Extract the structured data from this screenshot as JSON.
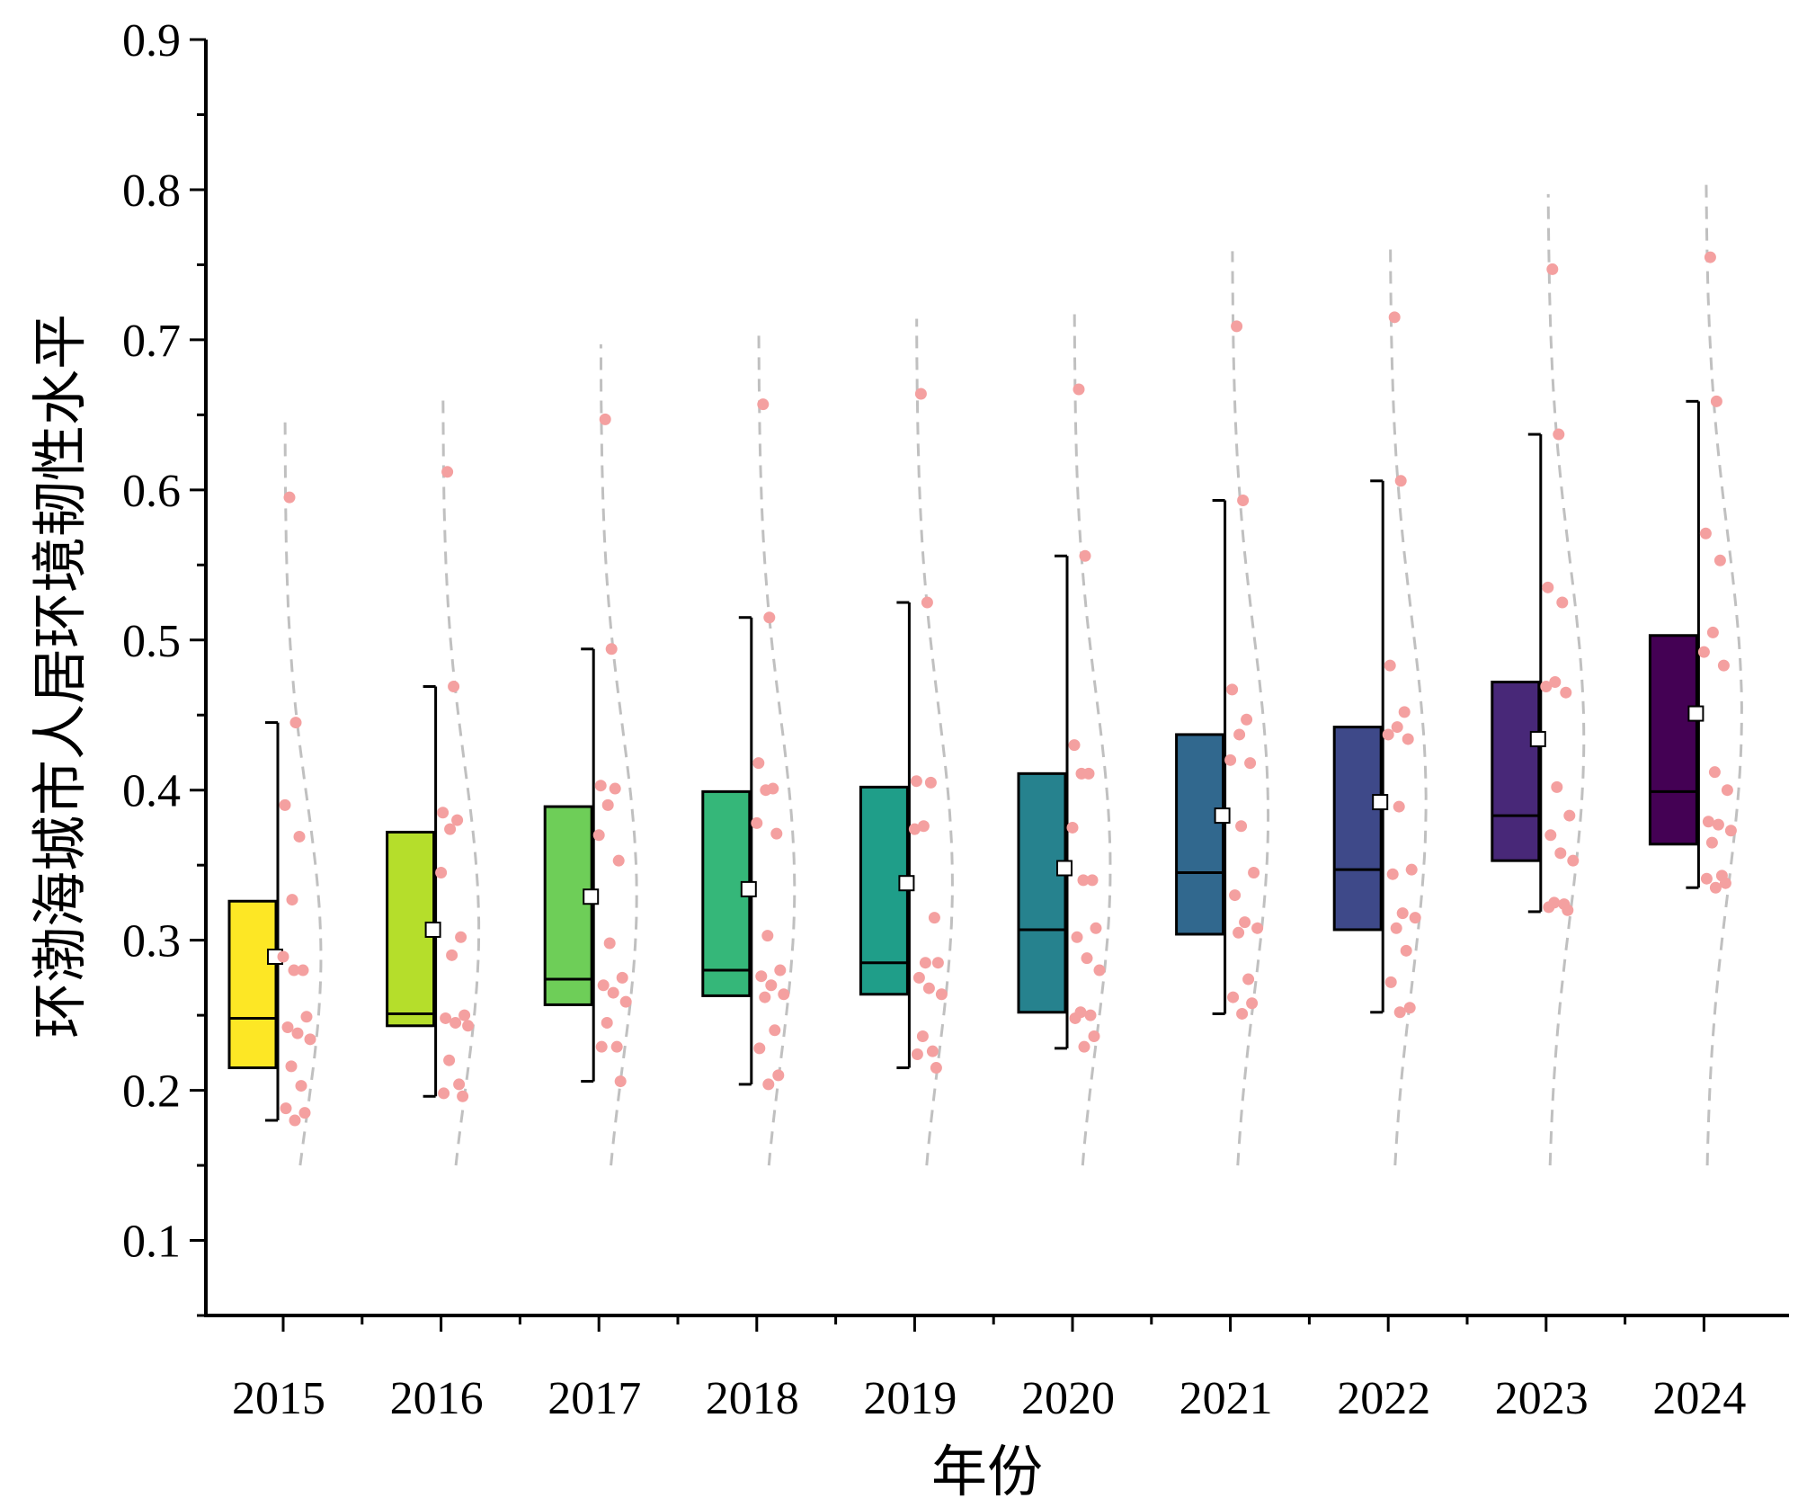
{
  "chart_data": {
    "type": "box",
    "title": "",
    "xlabel": "年份",
    "ylabel": "环渤海城市人居环境韧性水平",
    "ylim": [
      0.05,
      0.9
    ],
    "yticks": [
      "0.1",
      "0.2",
      "0.3",
      "0.4",
      "0.5",
      "0.6",
      "0.7",
      "0.8",
      "0.9"
    ],
    "categories": [
      "2015",
      "2016",
      "2017",
      "2018",
      "2019",
      "2020",
      "2021",
      "2022",
      "2023",
      "2024"
    ],
    "colors": [
      "#fde725",
      "#b5de2b",
      "#6ece58",
      "#35b779",
      "#1f9e89",
      "#26828e",
      "#31688e",
      "#3e4989",
      "#482878",
      "#440154"
    ],
    "point_color": "#f4a0a0",
    "curve_color": "#c0c0c0",
    "series": [
      {
        "name": "2015",
        "q1": 0.215,
        "median": 0.248,
        "q3": 0.326,
        "whisker_low": 0.18,
        "whisker_high": 0.445,
        "mean": 0.289,
        "points": [
          0.595,
          0.445,
          0.39,
          0.369,
          0.327,
          0.289,
          0.28,
          0.28,
          0.249,
          0.242,
          0.238,
          0.234,
          0.216,
          0.203,
          0.188,
          0.185,
          0.18
        ]
      },
      {
        "name": "2016",
        "q1": 0.243,
        "median": 0.251,
        "q3": 0.372,
        "whisker_low": 0.196,
        "whisker_high": 0.469,
        "mean": 0.307,
        "points": [
          0.612,
          0.469,
          0.385,
          0.38,
          0.374,
          0.345,
          0.302,
          0.29,
          0.25,
          0.248,
          0.245,
          0.243,
          0.22,
          0.204,
          0.198,
          0.196
        ]
      },
      {
        "name": "2017",
        "q1": 0.257,
        "median": 0.274,
        "q3": 0.389,
        "whisker_low": 0.206,
        "whisker_high": 0.494,
        "mean": 0.329,
        "points": [
          0.647,
          0.494,
          0.403,
          0.401,
          0.39,
          0.37,
          0.353,
          0.298,
          0.275,
          0.27,
          0.265,
          0.259,
          0.245,
          0.229,
          0.229,
          0.206
        ]
      },
      {
        "name": "2018",
        "q1": 0.263,
        "median": 0.28,
        "q3": 0.399,
        "whisker_low": 0.204,
        "whisker_high": 0.515,
        "mean": 0.334,
        "points": [
          0.657,
          0.515,
          0.418,
          0.401,
          0.4,
          0.378,
          0.371,
          0.303,
          0.28,
          0.276,
          0.27,
          0.264,
          0.262,
          0.24,
          0.228,
          0.21,
          0.204
        ]
      },
      {
        "name": "2019",
        "q1": 0.264,
        "median": 0.285,
        "q3": 0.402,
        "whisker_low": 0.215,
        "whisker_high": 0.525,
        "mean": 0.338,
        "points": [
          0.664,
          0.525,
          0.406,
          0.405,
          0.376,
          0.374,
          0.315,
          0.285,
          0.285,
          0.275,
          0.268,
          0.264,
          0.236,
          0.226,
          0.224,
          0.215
        ]
      },
      {
        "name": "2020",
        "q1": 0.252,
        "median": 0.307,
        "q3": 0.411,
        "whisker_low": 0.228,
        "whisker_high": 0.556,
        "mean": 0.348,
        "points": [
          0.667,
          0.556,
          0.43,
          0.411,
          0.411,
          0.375,
          0.34,
          0.34,
          0.308,
          0.302,
          0.288,
          0.28,
          0.252,
          0.25,
          0.248,
          0.236,
          0.229
        ]
      },
      {
        "name": "2021",
        "q1": 0.304,
        "median": 0.345,
        "q3": 0.437,
        "whisker_low": 0.251,
        "whisker_high": 0.593,
        "mean": 0.383,
        "points": [
          0.709,
          0.593,
          0.467,
          0.447,
          0.437,
          0.42,
          0.418,
          0.376,
          0.345,
          0.33,
          0.312,
          0.308,
          0.305,
          0.274,
          0.262,
          0.258,
          0.251
        ]
      },
      {
        "name": "2022",
        "q1": 0.307,
        "median": 0.347,
        "q3": 0.442,
        "whisker_low": 0.252,
        "whisker_high": 0.606,
        "mean": 0.392,
        "points": [
          0.715,
          0.606,
          0.483,
          0.452,
          0.442,
          0.437,
          0.434,
          0.389,
          0.347,
          0.344,
          0.318,
          0.315,
          0.308,
          0.293,
          0.272,
          0.255,
          0.252
        ]
      },
      {
        "name": "2023",
        "q1": 0.353,
        "median": 0.383,
        "q3": 0.472,
        "whisker_low": 0.319,
        "whisker_high": 0.637,
        "mean": 0.434,
        "points": [
          0.747,
          0.637,
          0.535,
          0.525,
          0.472,
          0.469,
          0.465,
          0.402,
          0.383,
          0.37,
          0.358,
          0.353,
          0.325,
          0.324,
          0.322,
          0.32
        ]
      },
      {
        "name": "2024",
        "q1": 0.364,
        "median": 0.399,
        "q3": 0.503,
        "whisker_low": 0.335,
        "whisker_high": 0.659,
        "mean": 0.451,
        "points": [
          0.755,
          0.659,
          0.571,
          0.553,
          0.505,
          0.492,
          0.483,
          0.412,
          0.4,
          0.379,
          0.377,
          0.373,
          0.365,
          0.343,
          0.341,
          0.338,
          0.335
        ]
      }
    ]
  }
}
